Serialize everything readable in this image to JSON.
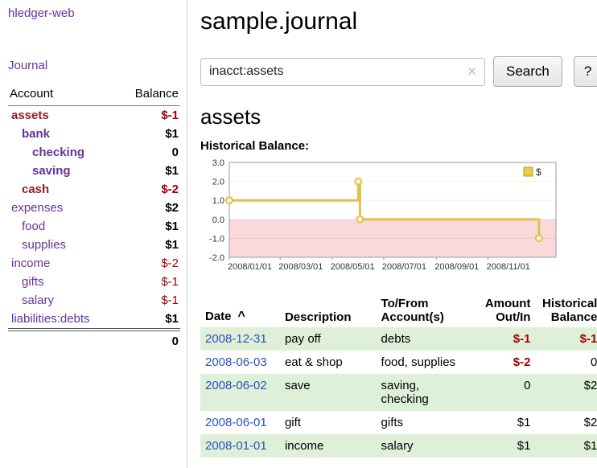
{
  "colors": {
    "purple_link": "#663399",
    "date_link_blue": "#2a52be",
    "negative_red": "#a00000",
    "emphasized_negative_name": "#8f1d1d",
    "row_stripe_green": "#dff0d8"
  },
  "sidebar": {
    "app_title": "hledger-web",
    "journal_link": "Journal",
    "accounts_table": {
      "headers": [
        "Account",
        "Balance"
      ],
      "rows": [
        {
          "name": "assets",
          "balance": "$-1",
          "indent": 0,
          "emph": true
        },
        {
          "name": "bank",
          "balance": "$1",
          "indent": 1,
          "emph": true
        },
        {
          "name": "checking",
          "balance": "0",
          "indent": 2,
          "emph": true
        },
        {
          "name": "saving",
          "balance": "$1",
          "indent": 2,
          "emph": true
        },
        {
          "name": "cash",
          "balance": "$-2",
          "indent": 1,
          "emph": true
        },
        {
          "name": "expenses",
          "balance": "$2",
          "indent": 0,
          "emph": false
        },
        {
          "name": "food",
          "balance": "$1",
          "indent": 1,
          "emph": false
        },
        {
          "name": "supplies",
          "balance": "$1",
          "indent": 1,
          "emph": false
        },
        {
          "name": "income",
          "balance": "$-2",
          "indent": 0,
          "emph": false
        },
        {
          "name": "gifts",
          "balance": "$-1",
          "indent": 1,
          "emph": false
        },
        {
          "name": "salary",
          "balance": "$-1",
          "indent": 1,
          "emph": false
        },
        {
          "name": "liabilities:debts",
          "balance": "$1",
          "indent": 0,
          "emph": false
        }
      ],
      "total": "0"
    }
  },
  "header": {
    "title": "sample.journal"
  },
  "search": {
    "value": "inacct:assets",
    "clear_icon": "✕",
    "button_label": "Search",
    "help_label": "?"
  },
  "account_page": {
    "heading": "assets",
    "chart_label": "Historical Balance:"
  },
  "chart_data": {
    "type": "line",
    "title": "Historical Balance:",
    "step": "post",
    "ylim": [
      -2.0,
      3.0
    ],
    "yticks": [
      3.0,
      2.0,
      1.0,
      0.0,
      -1.0,
      -2.0
    ],
    "xticks": [
      "2008/01/01",
      "2008/03/01",
      "2008/05/01",
      "2008/07/01",
      "2008/09/01",
      "2008/11/01"
    ],
    "x_domain": [
      "2008-01-01",
      "2009-01-20"
    ],
    "series": [
      {
        "name": "$",
        "points": [
          {
            "date": "2008-01-01",
            "value": 1
          },
          {
            "date": "2008-06-01",
            "value": 2
          },
          {
            "date": "2008-06-03",
            "value": 0
          },
          {
            "date": "2008-12-31",
            "value": -1
          }
        ]
      }
    ],
    "legend_position": "top-right",
    "grid": true,
    "negative_region": true,
    "colors": {
      "line": "#e3c04f",
      "marker_fill": "#fdf3d2",
      "legend_fill": "#ecc94b",
      "legend_border": "#b89b2e",
      "negative_region": "#f9d9d9"
    }
  },
  "register": {
    "headers": {
      "date": "Date",
      "sort_indicator": "^",
      "description": "Description",
      "accounts": "To/From\nAccount(s)",
      "amount": "Amount\nOut/In",
      "balance": "Historical\nBalance"
    },
    "rows": [
      {
        "date": "2008-12-31",
        "description": "pay off",
        "accounts": "debts",
        "amount": "$-1",
        "balance": "$-1"
      },
      {
        "date": "2008-06-03",
        "description": "eat & shop",
        "accounts": "food, supplies",
        "amount": "$-2",
        "balance": "0"
      },
      {
        "date": "2008-06-02",
        "description": "save",
        "accounts": "saving, checking",
        "amount": "0",
        "balance": "$2"
      },
      {
        "date": "2008-06-01",
        "description": "gift",
        "accounts": "gifts",
        "amount": "$1",
        "balance": "$2"
      },
      {
        "date": "2008-01-01",
        "description": "income",
        "accounts": "salary",
        "amount": "$1",
        "balance": "$1"
      }
    ]
  }
}
